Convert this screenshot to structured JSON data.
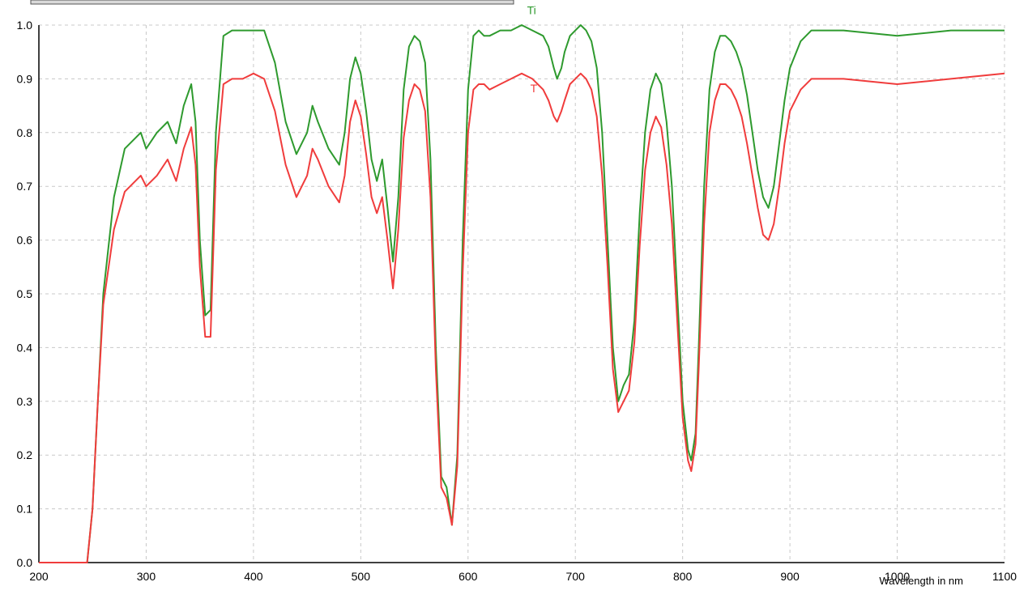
{
  "chart_data": {
    "type": "line",
    "xlabel": "Wavelength in nm",
    "ylabel": "",
    "xlim": [
      200,
      1100
    ],
    "ylim": [
      0.0,
      1.0
    ],
    "x_ticks": [
      200,
      300,
      400,
      500,
      600,
      700,
      800,
      900,
      1000,
      1100
    ],
    "y_ticks": [
      0.0,
      0.1,
      0.2,
      0.3,
      0.4,
      0.5,
      0.6,
      0.7,
      0.8,
      0.9,
      1.0
    ],
    "x_tick_labels": [
      "200",
      "300",
      "400",
      "500",
      "600",
      "700",
      "800",
      "900",
      "1000",
      "1100"
    ],
    "y_tick_labels": [
      "0.0",
      "0.1",
      "0.2",
      "0.3",
      "0.4",
      "0.5",
      "0.6",
      "0.7",
      "0.8",
      "0.9",
      "1.0"
    ],
    "grid": true,
    "series": [
      {
        "name": "Ti",
        "color": "#2e9a2e",
        "label_at": [
          655,
          1.02
        ],
        "x": [
          200,
          245,
          250,
          255,
          260,
          270,
          280,
          290,
          295,
          300,
          310,
          320,
          328,
          335,
          342,
          346,
          350,
          355,
          360,
          365,
          372,
          380,
          390,
          400,
          410,
          420,
          430,
          440,
          450,
          455,
          460,
          470,
          480,
          485,
          490,
          495,
          500,
          505,
          510,
          515,
          520,
          525,
          530,
          535,
          540,
          545,
          550,
          555,
          560,
          565,
          570,
          575,
          580,
          585,
          590,
          595,
          600,
          605,
          610,
          615,
          620,
          630,
          640,
          650,
          660,
          670,
          675,
          680,
          683,
          687,
          690,
          695,
          700,
          705,
          710,
          715,
          720,
          725,
          730,
          735,
          740,
          745,
          750,
          755,
          760,
          765,
          770,
          775,
          780,
          785,
          790,
          795,
          800,
          805,
          808,
          812,
          815,
          820,
          825,
          830,
          835,
          840,
          845,
          850,
          855,
          860,
          865,
          870,
          875,
          880,
          885,
          890,
          895,
          900,
          910,
          920,
          930,
          950,
          1000,
          1050,
          1100
        ],
        "y": [
          0.0,
          0.0,
          0.1,
          0.3,
          0.5,
          0.68,
          0.77,
          0.79,
          0.8,
          0.77,
          0.8,
          0.82,
          0.78,
          0.85,
          0.89,
          0.82,
          0.6,
          0.46,
          0.47,
          0.8,
          0.98,
          0.99,
          0.99,
          0.99,
          0.99,
          0.93,
          0.82,
          0.76,
          0.8,
          0.85,
          0.82,
          0.77,
          0.74,
          0.8,
          0.9,
          0.94,
          0.91,
          0.84,
          0.75,
          0.71,
          0.75,
          0.66,
          0.56,
          0.68,
          0.88,
          0.96,
          0.98,
          0.97,
          0.93,
          0.75,
          0.4,
          0.16,
          0.14,
          0.07,
          0.2,
          0.6,
          0.88,
          0.98,
          0.99,
          0.98,
          0.98,
          0.99,
          0.99,
          1.0,
          0.99,
          0.98,
          0.96,
          0.92,
          0.9,
          0.92,
          0.95,
          0.98,
          0.99,
          1.0,
          0.99,
          0.97,
          0.92,
          0.8,
          0.6,
          0.4,
          0.3,
          0.33,
          0.35,
          0.45,
          0.65,
          0.8,
          0.88,
          0.91,
          0.89,
          0.82,
          0.7,
          0.5,
          0.3,
          0.21,
          0.19,
          0.24,
          0.4,
          0.7,
          0.88,
          0.95,
          0.98,
          0.98,
          0.97,
          0.95,
          0.92,
          0.87,
          0.8,
          0.73,
          0.68,
          0.66,
          0.7,
          0.78,
          0.86,
          0.92,
          0.97,
          0.99,
          0.99,
          0.99,
          0.98,
          0.99,
          0.99
        ]
      },
      {
        "name": "T",
        "color": "#f03c3c",
        "label_at": [
          658,
          0.875
        ],
        "x": [
          200,
          245,
          250,
          255,
          260,
          270,
          280,
          290,
          295,
          300,
          310,
          320,
          328,
          335,
          342,
          346,
          350,
          355,
          360,
          365,
          372,
          380,
          390,
          400,
          410,
          420,
          430,
          440,
          450,
          455,
          460,
          470,
          480,
          485,
          490,
          495,
          500,
          505,
          510,
          515,
          520,
          525,
          530,
          535,
          540,
          545,
          550,
          555,
          560,
          565,
          570,
          575,
          580,
          585,
          590,
          595,
          600,
          605,
          610,
          615,
          620,
          630,
          640,
          650,
          660,
          670,
          675,
          680,
          683,
          687,
          690,
          695,
          700,
          705,
          710,
          715,
          720,
          725,
          730,
          735,
          740,
          745,
          750,
          755,
          760,
          765,
          770,
          775,
          780,
          785,
          790,
          795,
          800,
          805,
          808,
          812,
          815,
          820,
          825,
          830,
          835,
          840,
          845,
          850,
          855,
          860,
          865,
          870,
          875,
          880,
          885,
          890,
          895,
          900,
          910,
          920,
          930,
          950,
          1000,
          1050,
          1100
        ],
        "y": [
          0.0,
          0.0,
          0.1,
          0.3,
          0.48,
          0.62,
          0.69,
          0.71,
          0.72,
          0.7,
          0.72,
          0.75,
          0.71,
          0.77,
          0.81,
          0.74,
          0.55,
          0.42,
          0.42,
          0.73,
          0.89,
          0.9,
          0.9,
          0.91,
          0.9,
          0.84,
          0.74,
          0.68,
          0.72,
          0.77,
          0.75,
          0.7,
          0.67,
          0.72,
          0.82,
          0.86,
          0.83,
          0.76,
          0.68,
          0.65,
          0.68,
          0.6,
          0.51,
          0.62,
          0.79,
          0.86,
          0.89,
          0.88,
          0.84,
          0.68,
          0.36,
          0.14,
          0.12,
          0.07,
          0.18,
          0.54,
          0.8,
          0.88,
          0.89,
          0.89,
          0.88,
          0.89,
          0.9,
          0.91,
          0.9,
          0.88,
          0.86,
          0.83,
          0.82,
          0.84,
          0.86,
          0.89,
          0.9,
          0.91,
          0.9,
          0.88,
          0.83,
          0.72,
          0.55,
          0.36,
          0.28,
          0.3,
          0.32,
          0.41,
          0.59,
          0.73,
          0.8,
          0.83,
          0.81,
          0.74,
          0.63,
          0.45,
          0.27,
          0.19,
          0.17,
          0.22,
          0.36,
          0.63,
          0.8,
          0.86,
          0.89,
          0.89,
          0.88,
          0.86,
          0.83,
          0.78,
          0.72,
          0.66,
          0.61,
          0.6,
          0.63,
          0.7,
          0.78,
          0.84,
          0.88,
          0.9,
          0.9,
          0.9,
          0.89,
          0.9,
          0.91
        ]
      }
    ]
  }
}
